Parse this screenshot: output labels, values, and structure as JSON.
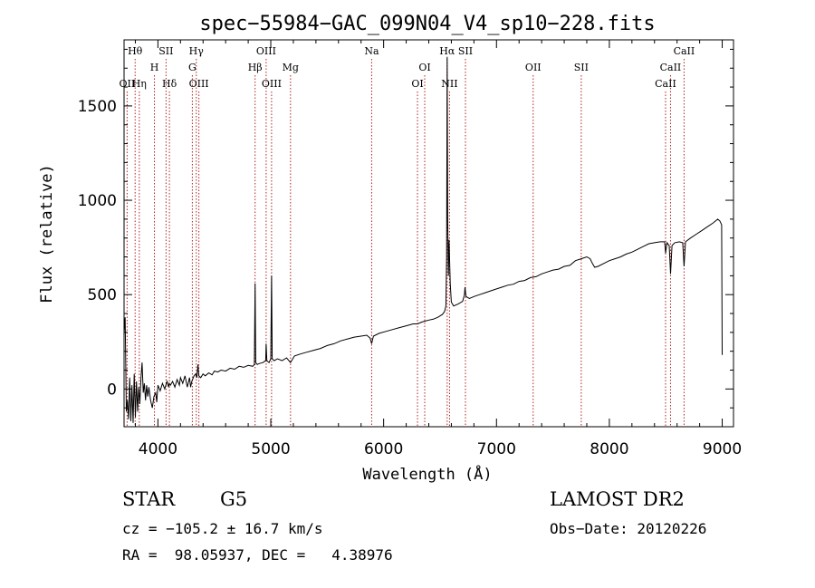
{
  "chart_data": {
    "type": "line",
    "title": "spec−55984−GAC_099N04_V4_sp10−228.fits",
    "xlabel": "Wavelength (Å)",
    "ylabel": "Flux (relative)",
    "xlim": [
      3700,
      9100
    ],
    "ylim": [
      -200,
      1850
    ],
    "x_ticks": [
      4000,
      5000,
      6000,
      7000,
      8000,
      9000
    ],
    "y_ticks": [
      0,
      500,
      1000,
      1500
    ],
    "x_tick_labels": [
      "4000",
      "5000",
      "6000",
      "7000",
      "8000",
      "9000"
    ],
    "y_tick_labels": [
      "0",
      "500",
      "1000",
      "1500"
    ],
    "grid": false,
    "line_markers": [
      {
        "name": "Hθ",
        "wavelength": 3798,
        "row": 0
      },
      {
        "name": "OII",
        "wavelength": 3727,
        "row": 2
      },
      {
        "name": "Hη",
        "wavelength": 3835,
        "row": 2
      },
      {
        "name": "SII",
        "wavelength": 4072,
        "row": 0
      },
      {
        "name": "H",
        "wavelength": 3969,
        "row": 1
      },
      {
        "name": "Hδ",
        "wavelength": 4102,
        "row": 2
      },
      {
        "name": "Hγ",
        "wavelength": 4340,
        "row": 0
      },
      {
        "name": "G",
        "wavelength": 4305,
        "row": 1
      },
      {
        "name": "OIII",
        "wavelength": 4363,
        "row": 2
      },
      {
        "name": "OIII",
        "wavelength": 4959,
        "row": 0
      },
      {
        "name": "Hβ",
        "wavelength": 4861,
        "row": 1
      },
      {
        "name": "OIII",
        "wavelength": 5007,
        "row": 2
      },
      {
        "name": "Mg",
        "wavelength": 5175,
        "row": 1
      },
      {
        "name": "Na",
        "wavelength": 5894,
        "row": 0
      },
      {
        "name": "OI",
        "wavelength": 6364,
        "row": 1
      },
      {
        "name": "OI",
        "wavelength": 6300,
        "row": 2
      },
      {
        "name": "Hα",
        "wavelength": 6563,
        "row": 0
      },
      {
        "name": "SII",
        "wavelength": 6725,
        "row": 0
      },
      {
        "name": "NII",
        "wavelength": 6584,
        "row": 2
      },
      {
        "name": "OII",
        "wavelength": 7325,
        "row": 1
      },
      {
        "name": "SII",
        "wavelength": 7751,
        "row": 1
      },
      {
        "name": "CaII",
        "wavelength": 8662,
        "row": 0
      },
      {
        "name": "CaII",
        "wavelength": 8542,
        "row": 1
      },
      {
        "name": "CaII",
        "wavelength": 8498,
        "row": 2
      }
    ],
    "series": [
      {
        "points": [
          [
            3700,
            300
          ],
          [
            3710,
            380
          ],
          [
            3715,
            120
          ],
          [
            3720,
            -120
          ],
          [
            3730,
            -60
          ],
          [
            3740,
            -160
          ],
          [
            3750,
            60
          ],
          [
            3760,
            -170
          ],
          [
            3770,
            20
          ],
          [
            3780,
            -180
          ],
          [
            3790,
            80
          ],
          [
            3800,
            -150
          ],
          [
            3810,
            40
          ],
          [
            3820,
            -120
          ],
          [
            3830,
            10
          ],
          [
            3840,
            -80
          ],
          [
            3850,
            60
          ],
          [
            3860,
            140
          ],
          [
            3870,
            -20
          ],
          [
            3880,
            30
          ],
          [
            3890,
            -60
          ],
          [
            3900,
            20
          ],
          [
            3910,
            -40
          ],
          [
            3920,
            10
          ],
          [
            3935,
            -60
          ],
          [
            3950,
            -100
          ],
          [
            3965,
            -40
          ],
          [
            3980,
            -20
          ],
          [
            3990,
            -70
          ],
          [
            4000,
            20
          ],
          [
            4020,
            -10
          ],
          [
            4040,
            30
          ],
          [
            4060,
            0
          ],
          [
            4080,
            40
          ],
          [
            4095,
            10
          ],
          [
            4100,
            30
          ],
          [
            4110,
            20
          ],
          [
            4130,
            40
          ],
          [
            4150,
            10
          ],
          [
            4170,
            50
          ],
          [
            4190,
            20
          ],
          [
            4200,
            60
          ],
          [
            4220,
            30
          ],
          [
            4240,
            70
          ],
          [
            4260,
            10
          ],
          [
            4280,
            60
          ],
          [
            4290,
            10
          ],
          [
            4300,
            40
          ],
          [
            4320,
            70
          ],
          [
            4335,
            80
          ],
          [
            4345,
            60
          ],
          [
            4355,
            130
          ],
          [
            4362,
            70
          ],
          [
            4380,
            60
          ],
          [
            4400,
            80
          ],
          [
            4420,
            70
          ],
          [
            4450,
            85
          ],
          [
            4480,
            75
          ],
          [
            4500,
            95
          ],
          [
            4530,
            90
          ],
          [
            4560,
            100
          ],
          [
            4600,
            95
          ],
          [
            4640,
            110
          ],
          [
            4680,
            105
          ],
          [
            4720,
            120
          ],
          [
            4760,
            115
          ],
          [
            4800,
            125
          ],
          [
            4840,
            120
          ],
          [
            4855,
            130
          ],
          [
            4861,
            560
          ],
          [
            4867,
            140
          ],
          [
            4880,
            130
          ],
          [
            4900,
            135
          ],
          [
            4930,
            140
          ],
          [
            4955,
            150
          ],
          [
            4959,
            240
          ],
          [
            4965,
            150
          ],
          [
            4985,
            140
          ],
          [
            5000,
            160
          ],
          [
            5007,
            600
          ],
          [
            5013,
            160
          ],
          [
            5030,
            150
          ],
          [
            5060,
            160
          ],
          [
            5100,
            150
          ],
          [
            5140,
            165
          ],
          [
            5175,
            140
          ],
          [
            5210,
            175
          ],
          [
            5260,
            185
          ],
          [
            5320,
            195
          ],
          [
            5380,
            205
          ],
          [
            5440,
            215
          ],
          [
            5500,
            230
          ],
          [
            5560,
            240
          ],
          [
            5620,
            255
          ],
          [
            5680,
            265
          ],
          [
            5740,
            275
          ],
          [
            5800,
            280
          ],
          [
            5850,
            285
          ],
          [
            5880,
            270
          ],
          [
            5894,
            240
          ],
          [
            5910,
            280
          ],
          [
            5960,
            295
          ],
          [
            6020,
            305
          ],
          [
            6080,
            315
          ],
          [
            6140,
            325
          ],
          [
            6200,
            335
          ],
          [
            6260,
            345
          ],
          [
            6300,
            345
          ],
          [
            6340,
            355
          ],
          [
            6400,
            365
          ],
          [
            6440,
            370
          ],
          [
            6480,
            380
          ],
          [
            6520,
            395
          ],
          [
            6540,
            410
          ],
          [
            6552,
            440
          ],
          [
            6558,
            700
          ],
          [
            6563,
            1760
          ],
          [
            6568,
            900
          ],
          [
            6574,
            600
          ],
          [
            6580,
            790
          ],
          [
            6584,
            700
          ],
          [
            6590,
            560
          ],
          [
            6600,
            460
          ],
          [
            6620,
            440
          ],
          [
            6660,
            450
          ],
          [
            6700,
            465
          ],
          [
            6716,
            500
          ],
          [
            6721,
            540
          ],
          [
            6730,
            490
          ],
          [
            6760,
            480
          ],
          [
            6800,
            490
          ],
          [
            6850,
            500
          ],
          [
            6900,
            510
          ],
          [
            6950,
            520
          ],
          [
            7000,
            530
          ],
          [
            7050,
            540
          ],
          [
            7100,
            550
          ],
          [
            7150,
            555
          ],
          [
            7200,
            570
          ],
          [
            7250,
            575
          ],
          [
            7300,
            590
          ],
          [
            7350,
            595
          ],
          [
            7400,
            610
          ],
          [
            7450,
            620
          ],
          [
            7500,
            630
          ],
          [
            7550,
            635
          ],
          [
            7600,
            650
          ],
          [
            7650,
            655
          ],
          [
            7700,
            680
          ],
          [
            7750,
            690
          ],
          [
            7800,
            700
          ],
          [
            7830,
            690
          ],
          [
            7850,
            665
          ],
          [
            7870,
            645
          ],
          [
            7900,
            650
          ],
          [
            7950,
            665
          ],
          [
            8000,
            680
          ],
          [
            8050,
            690
          ],
          [
            8100,
            700
          ],
          [
            8150,
            715
          ],
          [
            8200,
            725
          ],
          [
            8250,
            740
          ],
          [
            8300,
            755
          ],
          [
            8350,
            770
          ],
          [
            8400,
            775
          ],
          [
            8450,
            780
          ],
          [
            8490,
            780
          ],
          [
            8498,
            720
          ],
          [
            8510,
            775
          ],
          [
            8530,
            760
          ],
          [
            8542,
            610
          ],
          [
            8555,
            760
          ],
          [
            8580,
            775
          ],
          [
            8620,
            780
          ],
          [
            8650,
            775
          ],
          [
            8662,
            650
          ],
          [
            8675,
            780
          ],
          [
            8720,
            800
          ],
          [
            8770,
            820
          ],
          [
            8820,
            840
          ],
          [
            8870,
            860
          ],
          [
            8920,
            880
          ],
          [
            8960,
            900
          ],
          [
            8980,
            890
          ],
          [
            8995,
            870
          ],
          [
            9000,
            180
          ]
        ]
      }
    ]
  },
  "info": {
    "object_class": "STAR",
    "subclass": "G5",
    "survey": "LAMOST DR2",
    "redshift": "cz = −105.2 ± 16.7 km/s",
    "obs_date": "Obs−Date: 20120226",
    "coords": "RA =  98.05937, DEC =   4.38976"
  }
}
